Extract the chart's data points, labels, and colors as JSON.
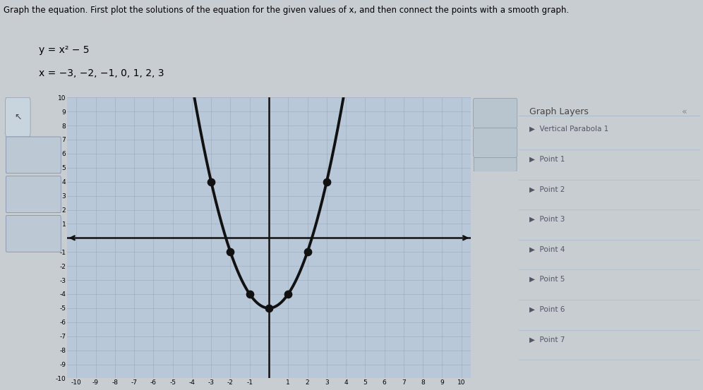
{
  "title_line1": "Graph the equation. First plot the solutions of the equation for the given values of x, and then connect the points with a smooth graph.",
  "eq_label": "y = x² − 5",
  "x_label": "x = −3, −2, −1, 0, 1, 2, 3",
  "x_points": [
    -3,
    -2,
    -1,
    0,
    1,
    2,
    3
  ],
  "y_points": [
    4,
    -1,
    -4,
    -5,
    -4,
    -1,
    4
  ],
  "xlim": [
    -10.5,
    10.5
  ],
  "ylim": [
    -10,
    10
  ],
  "grid_color": "#9aaabb",
  "plot_bg": "#b8c8d8",
  "curve_color": "#111111",
  "point_color": "#111111",
  "curve_linewidth": 2.8,
  "axis_color": "#111111",
  "outer_bg": "#c8cdd2",
  "left_panel_bg": "#b0bac4",
  "right_panel_bg": "#dce4ec",
  "panel_text_color": "#555566",
  "layers": [
    "Vertical Parabola 1",
    "Point 1",
    "Point 2",
    "Point 3",
    "Point 4",
    "Point 5",
    "Point 6",
    "Point 7"
  ]
}
